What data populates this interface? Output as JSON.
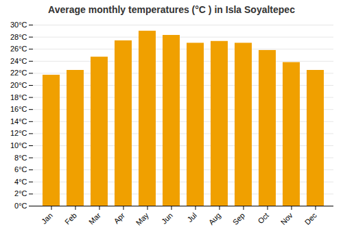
{
  "chart_data": {
    "type": "bar",
    "title": "Average monthly temperatures (°C ) in Isla Soyaltepec",
    "categories": [
      "Jan",
      "Feb",
      "Mar",
      "Apr",
      "May",
      "Jun",
      "Jul",
      "Aug",
      "Sep",
      "Oct",
      "Nov",
      "Dec"
    ],
    "values": [
      21.7,
      22.5,
      24.7,
      27.4,
      29.0,
      28.3,
      27.0,
      27.3,
      27.0,
      25.8,
      23.8,
      22.5
    ],
    "color": "#F0A000",
    "ylim": [
      0,
      30
    ],
    "yticks": [
      {
        "value": 0,
        "label": "0°C"
      },
      {
        "value": 2,
        "label": "2°C"
      },
      {
        "value": 4,
        "label": "4°C"
      },
      {
        "value": 6,
        "label": "6°C"
      },
      {
        "value": 8,
        "label": "8°C"
      },
      {
        "value": 10,
        "label": "10°C"
      },
      {
        "value": 12,
        "label": "12°C"
      },
      {
        "value": 14,
        "label": "14°C"
      },
      {
        "value": 16,
        "label": "16°C"
      },
      {
        "value": 18,
        "label": "18°C"
      },
      {
        "value": 20,
        "label": "20°C"
      },
      {
        "value": 22,
        "label": "22°C"
      },
      {
        "value": 24,
        "label": "24°C"
      },
      {
        "value": 26,
        "label": "26°C"
      },
      {
        "value": 28,
        "label": "28°C"
      },
      {
        "value": 30,
        "label": "30°C"
      }
    ],
    "grid": true
  }
}
